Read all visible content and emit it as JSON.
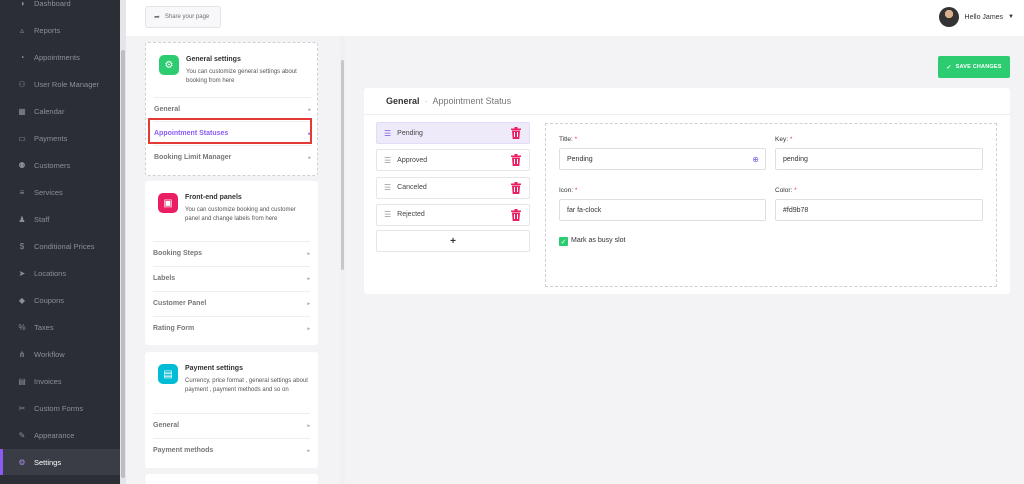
{
  "sidebar": {
    "items": [
      {
        "label": "Dashboard",
        "icon": "gauge-icon"
      },
      {
        "label": "Reports",
        "icon": "chart-icon"
      },
      {
        "label": "Appointments",
        "icon": "clock-icon"
      },
      {
        "label": "User Role Manager",
        "icon": "users-cog-icon"
      },
      {
        "label": "Calendar",
        "icon": "calendar-icon"
      },
      {
        "label": "Payments",
        "icon": "card-icon"
      },
      {
        "label": "Customers",
        "icon": "people-icon"
      },
      {
        "label": "Services",
        "icon": "list-icon"
      },
      {
        "label": "Staff",
        "icon": "person-icon"
      },
      {
        "label": "Conditional Prices",
        "icon": "dollar-icon"
      },
      {
        "label": "Locations",
        "icon": "location-icon"
      },
      {
        "label": "Coupons",
        "icon": "tag-icon"
      },
      {
        "label": "Taxes",
        "icon": "percent-icon"
      },
      {
        "label": "Workflow",
        "icon": "workflow-icon"
      },
      {
        "label": "Invoices",
        "icon": "file-icon"
      },
      {
        "label": "Custom Forms",
        "icon": "tools-icon"
      },
      {
        "label": "Appearance",
        "icon": "brush-icon"
      },
      {
        "label": "Settings",
        "icon": "gear-icon",
        "active": true
      }
    ]
  },
  "topbar": {
    "share_label": "Share your page",
    "user_greeting": "Hello James"
  },
  "settings_cards": {
    "general": {
      "title": "General settings",
      "desc": "You can customize general settings about booking from here",
      "items": [
        "General",
        "Appointment Statuses",
        "Booking Limit Manager"
      ]
    },
    "frontend": {
      "title": "Front-end panels",
      "desc": "You can customize booking and customer panel and change labels from here",
      "items": [
        "Booking Steps",
        "Labels",
        "Customer Panel",
        "Rating Form"
      ]
    },
    "payment": {
      "title": "Payment settings",
      "desc": "Currency, price format , general settings about payment , payment methods and so on",
      "items": [
        "General",
        "Payment methods"
      ]
    }
  },
  "main": {
    "save_label": "SAVE CHANGES",
    "breadcrumb_root": "General",
    "breadcrumb_sub": "Appointment Status",
    "statuses": [
      "Pending",
      "Approved",
      "Canceled",
      "Rejected"
    ],
    "add_label": "+",
    "form": {
      "title_label": "Title:",
      "title_value": "Pending",
      "key_label": "Key:",
      "key_value": "pending",
      "icon_label": "Icon:",
      "icon_value": "far fa-clock",
      "color_label": "Color:",
      "color_value": "#fd9b78",
      "busy_label": "Mark as busy slot",
      "busy_checked": true,
      "required_mark": "*"
    }
  },
  "colors": {
    "accent": "#8a5cf5",
    "save": "#2ecc71",
    "delete": "#e91e63",
    "highlight": "#e53935"
  }
}
